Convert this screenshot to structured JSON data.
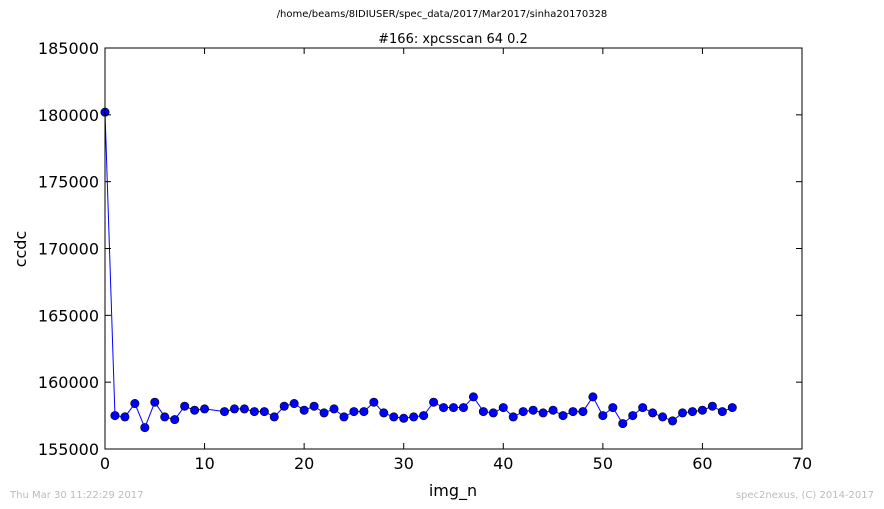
{
  "suptitle": "/home/beams/8IDIUSER/spec_data/2017/Mar2017/sinha20170328",
  "footer": {
    "left": "Thu Mar 30 11:22:29 2017",
    "right": "spec2nexus, (C) 2014-2017"
  },
  "chart_data": {
    "type": "line",
    "title": "#166: xpcsscan 64 0.2",
    "xlabel": "img_n",
    "ylabel": "ccdc",
    "xlim": [
      0,
      70
    ],
    "ylim": [
      155000,
      185000
    ],
    "xticks": [
      0,
      10,
      20,
      30,
      40,
      50,
      60,
      70
    ],
    "yticks": [
      155000,
      160000,
      165000,
      170000,
      175000,
      180000,
      185000
    ],
    "grid": false,
    "legend": "none",
    "series_color": "#0000ff",
    "x": [
      0,
      1,
      2,
      3,
      4,
      5,
      6,
      7,
      8,
      9,
      10,
      12,
      13,
      14,
      15,
      16,
      17,
      18,
      19,
      20,
      21,
      22,
      23,
      24,
      25,
      26,
      27,
      28,
      29,
      30,
      31,
      32,
      33,
      34,
      35,
      36,
      37,
      38,
      39,
      40,
      41,
      42,
      43,
      44,
      45,
      46,
      47,
      48,
      49,
      50,
      51,
      52,
      53,
      54,
      55,
      56,
      57,
      58,
      59,
      60,
      61,
      62,
      63
    ],
    "y": [
      180200,
      157500,
      157400,
      158400,
      156600,
      158500,
      157400,
      157200,
      158200,
      157900,
      158000,
      157800,
      158000,
      158000,
      157800,
      157800,
      157400,
      158200,
      158400,
      157900,
      158200,
      157700,
      158000,
      157400,
      157800,
      157800,
      158500,
      157700,
      157400,
      157300,
      157400,
      157500,
      158500,
      158100,
      158100,
      158100,
      158900,
      157800,
      157700,
      158100,
      157400,
      157800,
      157900,
      157700,
      157900,
      157500,
      157800,
      157800,
      158900,
      157500,
      158100,
      156900,
      157500,
      158100,
      157700,
      157400,
      157100,
      157700,
      157800,
      157900,
      158200,
      157800,
      158100
    ]
  }
}
